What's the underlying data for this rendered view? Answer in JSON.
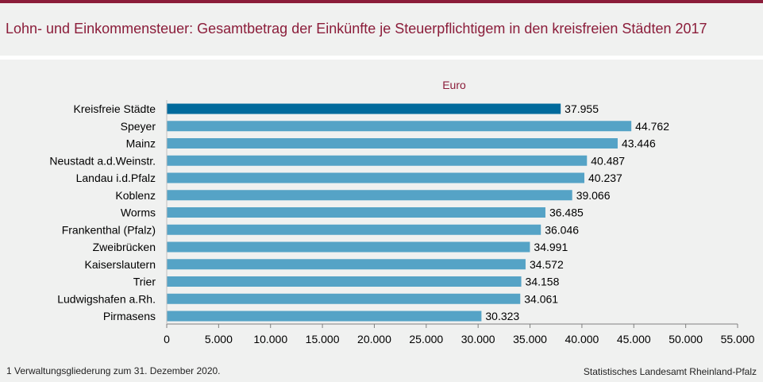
{
  "title": "Lohn- und Einkommensteuer: Gesamtbetrag der Einkünfte je Steuerpflichtigem in den kreisfreien Städten 2017",
  "colors": {
    "accent": "#8b1d3a",
    "total_bar": "#006a9c",
    "bar": "#55a3c6"
  },
  "chart_data": {
    "type": "bar",
    "orientation": "horizontal",
    "unit_label": "Euro",
    "categories": [
      "Kreisfreie Städte",
      "Speyer",
      "Mainz",
      "Neustadt a.d.Weinstr.",
      "Landau i.d.Pfalz",
      "Koblenz",
      "Worms",
      "Frankenthal (Pfalz)",
      "Zweibrücken",
      "Kaiserslautern",
      "Trier",
      "Ludwigshafen a.Rh.",
      "Pirmasens"
    ],
    "values": [
      37955,
      44762,
      43446,
      40487,
      40237,
      39066,
      36485,
      36046,
      34991,
      34572,
      34158,
      34061,
      30323
    ],
    "value_labels": [
      "37.955",
      "44.762",
      "43.446",
      "40.487",
      "40.237",
      "39.066",
      "36.485",
      "36.046",
      "34.991",
      "34.572",
      "34.158",
      "34.061",
      "30.323"
    ],
    "xlim": [
      0,
      55000
    ],
    "xticks": [
      0,
      5000,
      10000,
      15000,
      20000,
      25000,
      30000,
      35000,
      40000,
      45000,
      50000,
      55000
    ],
    "xtick_labels": [
      "0",
      "5.000",
      "10.000",
      "15.000",
      "20.000",
      "25.000",
      "30.000",
      "35.000",
      "40.000",
      "45.000",
      "50.000",
      "55.000"
    ],
    "highlight_index": 0,
    "grid": false
  },
  "footnote": "1 Verwaltungsgliederung  zum 31. Dezember 2020.",
  "source": "Statistisches Landesamt Rheinland-Pfalz"
}
